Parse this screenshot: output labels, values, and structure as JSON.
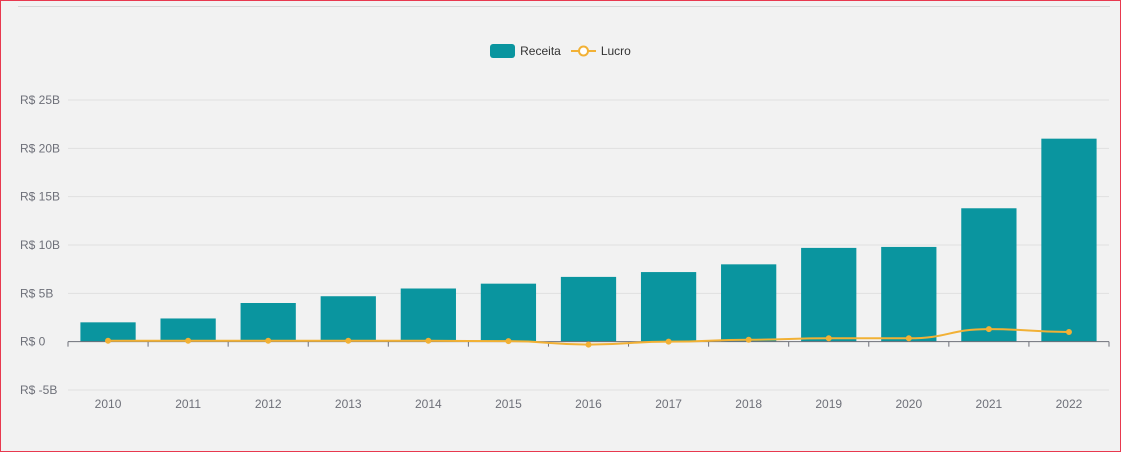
{
  "chart_data": {
    "type": "bar",
    "categories": [
      "2010",
      "2011",
      "2012",
      "2013",
      "2014",
      "2015",
      "2016",
      "2017",
      "2018",
      "2019",
      "2020",
      "2021",
      "2022"
    ],
    "series": [
      {
        "name": "Receita",
        "type": "bar",
        "color": "#0a959f",
        "values": [
          2.0,
          2.4,
          4.0,
          4.7,
          5.5,
          6.0,
          6.7,
          7.2,
          8.0,
          9.7,
          9.8,
          13.8,
          21.0
        ]
      },
      {
        "name": "Lucro",
        "type": "line",
        "color": "#f2b135",
        "values": [
          0.1,
          0.1,
          0.1,
          0.1,
          0.1,
          0.05,
          -0.3,
          0.0,
          0.2,
          0.35,
          0.35,
          1.3,
          1.0
        ]
      }
    ],
    "ylim": [
      -5,
      25
    ],
    "yticks": [
      -5,
      0,
      5,
      10,
      15,
      20,
      25
    ],
    "ytick_labels": [
      "R$ -5B",
      "R$ 0",
      "R$ 5B",
      "R$ 10B",
      "R$ 15B",
      "R$ 20B",
      "R$ 25B"
    ],
    "grid": true,
    "legend_position": "top-center",
    "title": "",
    "xlabel": "",
    "ylabel": ""
  }
}
